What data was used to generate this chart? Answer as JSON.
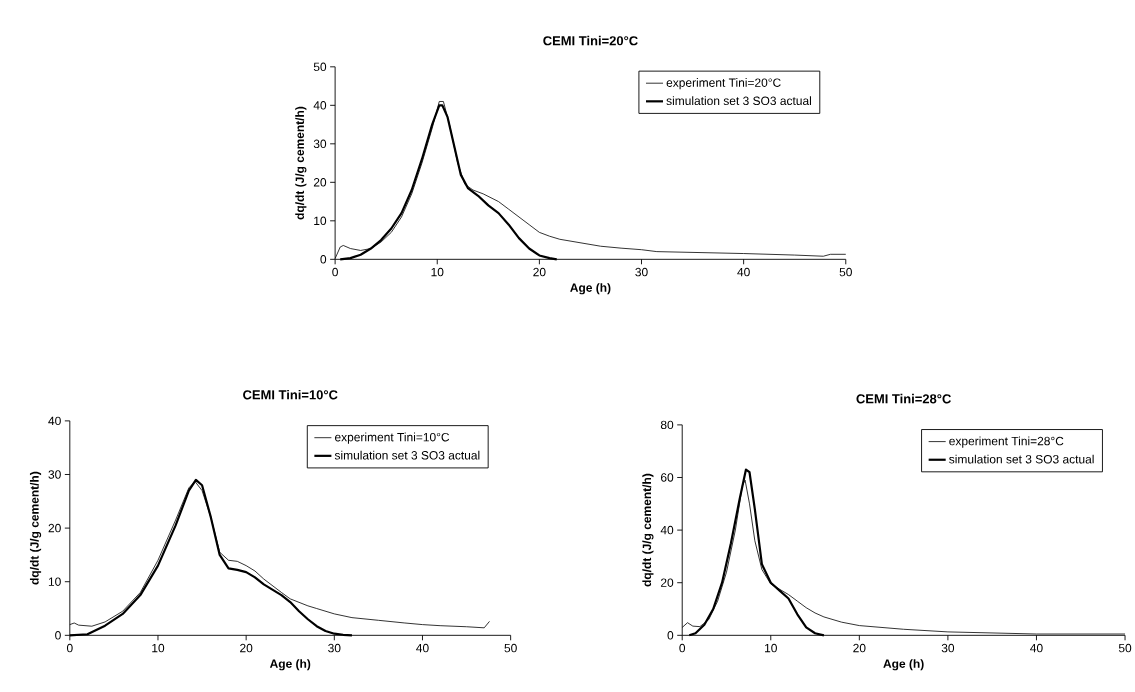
{
  "chart_data": [
    {
      "type": "line",
      "title": "CEMI Tini=20°C",
      "xlabel": "Age (h)",
      "ylabel": "dq/dt (J/g cement/h)",
      "xlim": [
        0,
        50
      ],
      "ylim": [
        0,
        50
      ],
      "xticks": [
        0,
        10,
        20,
        30,
        40,
        50
      ],
      "yticks": [
        0,
        10,
        20,
        30,
        40,
        50
      ],
      "legend": "top right",
      "grid": false,
      "marker": "none",
      "line_style": "solid",
      "series": [
        {
          "name": "experiment Tini=20°C",
          "color": "#000000",
          "x": [
            0,
            0.5,
            0.8,
            1.5,
            2.5,
            3.5,
            4.5,
            5.5,
            6.5,
            7.5,
            8.5,
            9.5,
            10.2,
            10.6,
            11.2,
            12,
            12.7,
            13.5,
            14.5,
            16,
            17,
            18,
            19,
            20,
            21,
            22,
            24,
            26,
            28,
            30,
            31.5,
            40,
            45,
            47.8,
            48.5,
            50
          ],
          "values": [
            0.2,
            3.2,
            3.6,
            2.8,
            2.3,
            2.8,
            4.5,
            7,
            11,
            17,
            25,
            34,
            41,
            41,
            35,
            25,
            19.5,
            18,
            17,
            15,
            13,
            11,
            9,
            7,
            6,
            5.2,
            4.3,
            3.4,
            2.9,
            2.5,
            2,
            1.5,
            1.1,
            0.8,
            1.3,
            1.3
          ]
        },
        {
          "name": "simulation set 3 SO3 actual",
          "color": "#000000",
          "x": [
            0.5,
            1.5,
            2.5,
            3.5,
            4.5,
            5.5,
            6.5,
            7.5,
            8.5,
            9.5,
            10.2,
            10.5,
            11,
            11.7,
            12.3,
            13,
            14,
            15,
            16,
            17,
            18,
            19,
            20,
            21,
            21.7
          ],
          "values": [
            0,
            0.3,
            1.2,
            2.8,
            5,
            8,
            12,
            18,
            26,
            35,
            40,
            40,
            37,
            29,
            22,
            18.5,
            16.5,
            14,
            12,
            9,
            5.5,
            2.8,
            1,
            0.3,
            0
          ]
        }
      ]
    },
    {
      "type": "line",
      "title": "CEMI Tini=10°C",
      "xlabel": "Age (h)",
      "ylabel": "dq/dt (J/g cement/h)",
      "xlim": [
        0,
        50
      ],
      "ylim": [
        0,
        40
      ],
      "xticks": [
        0,
        10,
        20,
        30,
        40,
        50
      ],
      "yticks": [
        0,
        10,
        20,
        30,
        40
      ],
      "legend": "top right",
      "grid": false,
      "marker": "none",
      "line_style": "solid",
      "series": [
        {
          "name": "experiment Tini=10°C",
          "color": "#000000",
          "x": [
            0,
            0.5,
            1,
            2.5,
            4,
            6,
            8,
            10,
            12,
            13.5,
            14.2,
            15,
            16,
            17,
            18,
            19,
            20,
            21,
            22,
            24,
            25,
            27,
            28,
            30,
            32,
            35,
            38,
            40,
            42,
            45,
            47,
            47.6
          ],
          "values": [
            2,
            2.3,
            1.9,
            1.7,
            2.5,
            4.5,
            8,
            14,
            21.5,
            27.5,
            28.7,
            27,
            22,
            15.5,
            14,
            13.8,
            13,
            12,
            10.5,
            8,
            6.8,
            5.5,
            5,
            4,
            3.3,
            2.8,
            2.3,
            2,
            1.8,
            1.6,
            1.4,
            2.6
          ]
        },
        {
          "name": "simulation set 3 SO3 actual",
          "color": "#000000",
          "x": [
            0,
            2,
            4,
            6,
            8,
            10,
            12,
            13.5,
            14.3,
            15,
            16,
            17,
            18,
            19,
            20,
            21,
            22,
            24,
            25,
            26,
            27,
            28,
            29,
            30,
            31,
            32
          ],
          "values": [
            0,
            0.2,
            1.8,
            4,
            7.5,
            13,
            20.5,
            27,
            29,
            28,
            22,
            15,
            12.5,
            12.2,
            11.8,
            10.8,
            9.5,
            7.5,
            6.2,
            4.5,
            3,
            1.7,
            0.8,
            0.3,
            0.1,
            0
          ]
        }
      ]
    },
    {
      "type": "line",
      "title": "CEMI Tini=28°C",
      "xlabel": "Age (h)",
      "ylabel": "dq/dt (J/g cement/h)",
      "xlim": [
        0,
        50
      ],
      "ylim": [
        0,
        80
      ],
      "xticks": [
        0,
        10,
        20,
        30,
        40,
        50
      ],
      "yticks": [
        0,
        20,
        40,
        60,
        80
      ],
      "legend": "top right",
      "grid": false,
      "marker": "none",
      "line_style": "solid",
      "series": [
        {
          "name": "experiment Tini=28°C",
          "color": "#000000",
          "x": [
            0,
            0.6,
            1.2,
            2,
            3,
            4,
            5,
            6,
            6.8,
            7.1,
            7.6,
            8.2,
            9,
            10,
            11,
            12,
            13,
            14,
            15,
            16,
            18,
            20,
            25,
            30,
            40,
            50
          ],
          "values": [
            3,
            4.8,
            3.5,
            3.3,
            6,
            13,
            24,
            40,
            57,
            59,
            50,
            36,
            25,
            19.5,
            17.5,
            15.5,
            13,
            10.5,
            8.5,
            7,
            5,
            3.7,
            2.3,
            1.3,
            0.5,
            0.5
          ]
        },
        {
          "name": "simulation set 3 SO3 actual",
          "color": "#000000",
          "x": [
            0.8,
            1.5,
            2.5,
            3.5,
            4.5,
            5.5,
            6.5,
            7.2,
            7.6,
            8.2,
            9,
            10,
            11,
            12,
            13,
            14,
            15,
            16
          ],
          "values": [
            0,
            0.8,
            4,
            10,
            20,
            35,
            52,
            63,
            62,
            48,
            27,
            20,
            17,
            14,
            8,
            3,
            0.8,
            0
          ]
        }
      ]
    }
  ]
}
